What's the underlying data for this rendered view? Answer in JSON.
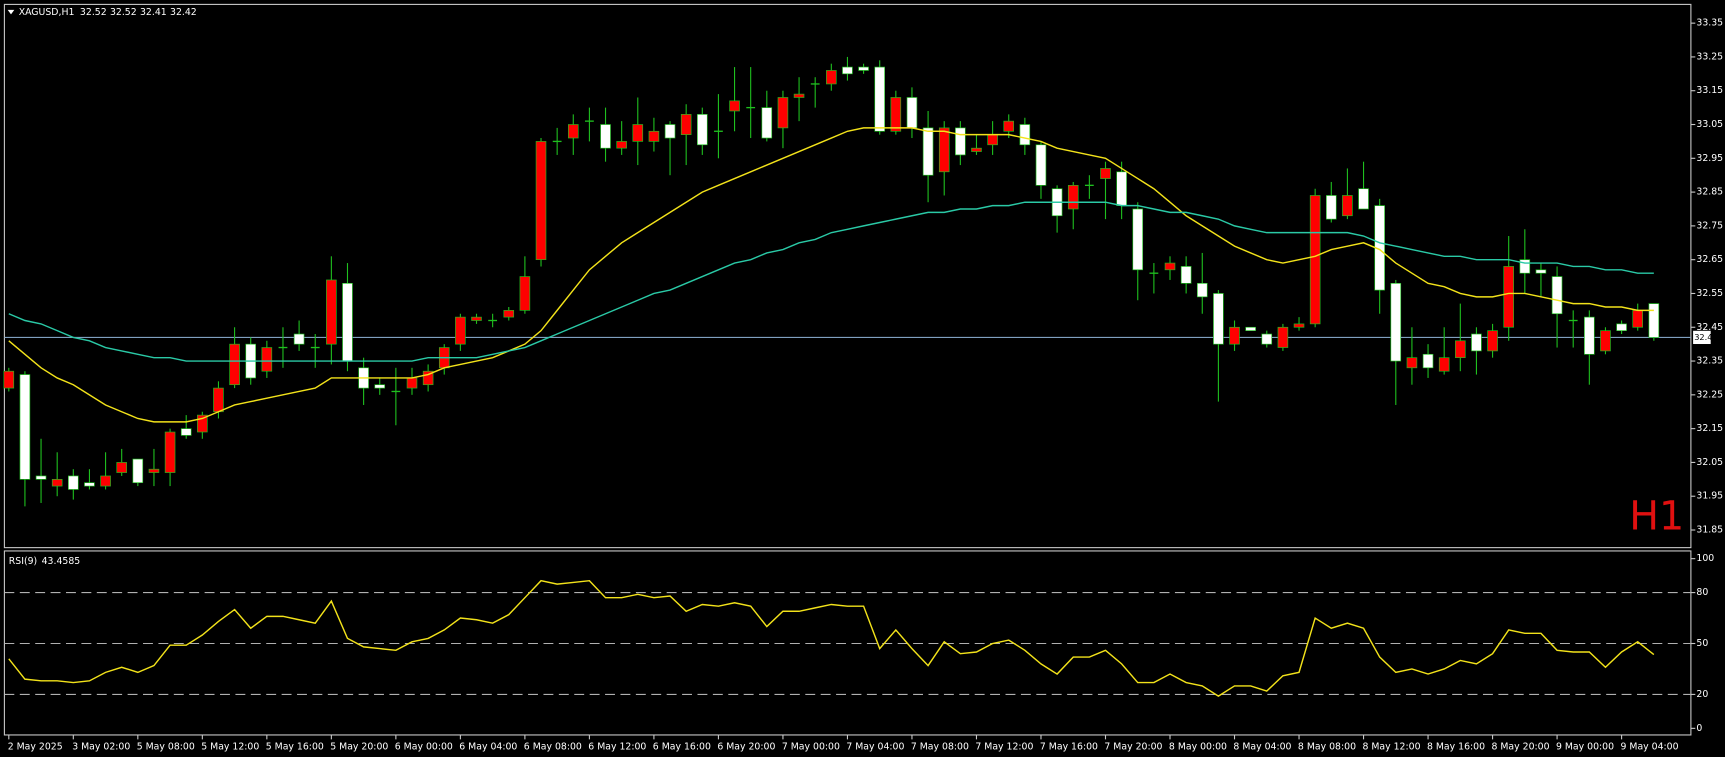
{
  "chart_data": [
    {
      "type": "candlestick",
      "title": "XAGUSD,H1",
      "categories": [
        "2 May 2025",
        null,
        null,
        null,
        "3 May 02:00",
        null,
        null,
        null,
        "5 May 08:00",
        null,
        null,
        null,
        "5 May 12:00",
        null,
        null,
        null,
        "5 May 16:00",
        null,
        null,
        null,
        "5 May 20:00",
        null,
        null,
        null,
        "6 May 00:00",
        null,
        null,
        null,
        "6 May 04:00",
        null,
        null,
        null,
        "6 May 08:00",
        null,
        null,
        null,
        "6 May 12:00",
        null,
        null,
        null,
        "6 May 16:00",
        null,
        null,
        null,
        "6 May 20:00",
        null,
        null,
        null,
        "7 May 00:00",
        null,
        null,
        null,
        "7 May 04:00",
        null,
        null,
        null,
        "7 May 08:00",
        null,
        null,
        null,
        "7 May 12:00",
        null,
        null,
        null,
        "7 May 16:00",
        null,
        null,
        null,
        "7 May 20:00",
        null,
        null,
        null,
        "8 May 00:00",
        null,
        null,
        null,
        "8 May 04:00",
        null,
        null,
        null,
        "8 May 08:00",
        null,
        null,
        null,
        "8 May 12:00",
        null,
        null,
        null,
        "8 May 16:00",
        null,
        null,
        null,
        "8 May 20:00",
        null,
        null,
        null,
        "9 May 00:00",
        null,
        null,
        null,
        "9 May 04:00",
        null,
        null
      ],
      "open": [
        32.27,
        32.31,
        32.01,
        31.98,
        32.01,
        31.99,
        31.98,
        32.02,
        32.06,
        32.02,
        32.02,
        32.15,
        32.14,
        32.2,
        32.28,
        32.4,
        32.32,
        32.39,
        32.43,
        32.39,
        32.4,
        32.58,
        32.33,
        32.28,
        32.26,
        32.27,
        32.28,
        32.33,
        32.4,
        32.47,
        32.47,
        32.48,
        32.5,
        32.65,
        33.0,
        33.01,
        33.06,
        33.05,
        32.98,
        33.0,
        33.0,
        33.05,
        33.02,
        33.08,
        33.03,
        33.09,
        33.1,
        33.1,
        33.04,
        33.13,
        33.17,
        33.17,
        33.22,
        33.22,
        33.22,
        33.03,
        33.13,
        33.04,
        32.91,
        33.04,
        32.97,
        32.99,
        33.03,
        33.05,
        32.99,
        32.86,
        32.8,
        32.87,
        32.89,
        32.91,
        32.8,
        32.61,
        32.62,
        32.63,
        32.58,
        32.55,
        32.4,
        32.45,
        32.43,
        32.39,
        32.45,
        32.46,
        32.84,
        32.78,
        32.86,
        32.81,
        32.58,
        32.33,
        32.37,
        32.32,
        32.36,
        32.43,
        32.38,
        32.45,
        32.65,
        32.62,
        32.6,
        32.47,
        32.48,
        32.38,
        32.46,
        32.45,
        32.52
      ],
      "high": [
        32.33,
        32.32,
        32.12,
        32.08,
        32.03,
        32.03,
        32.08,
        32.09,
        32.06,
        32.09,
        32.15,
        32.19,
        32.2,
        32.29,
        32.45,
        32.42,
        32.41,
        32.45,
        32.47,
        32.43,
        32.66,
        32.64,
        32.36,
        32.3,
        32.33,
        32.33,
        32.34,
        32.4,
        32.49,
        32.49,
        32.49,
        32.51,
        32.66,
        33.01,
        33.04,
        33.08,
        33.1,
        33.1,
        33.06,
        33.13,
        33.07,
        33.06,
        33.11,
        33.1,
        33.14,
        33.22,
        33.22,
        33.15,
        33.15,
        33.19,
        33.19,
        33.23,
        33.25,
        33.23,
        33.24,
        33.15,
        33.16,
        33.09,
        33.06,
        33.06,
        33.02,
        33.06,
        33.08,
        33.07,
        33.0,
        32.87,
        32.88,
        32.9,
        32.94,
        32.94,
        32.82,
        32.64,
        32.66,
        32.66,
        32.67,
        32.56,
        32.47,
        32.45,
        32.44,
        32.46,
        32.48,
        32.86,
        32.88,
        32.92,
        32.94,
        32.83,
        32.59,
        32.45,
        32.4,
        32.45,
        32.52,
        32.45,
        32.46,
        32.72,
        32.74,
        32.64,
        32.63,
        32.5,
        32.5,
        32.45,
        32.47,
        32.52,
        32.52
      ],
      "low": [
        32.26,
        31.92,
        31.93,
        31.95,
        31.94,
        31.97,
        31.97,
        32.01,
        31.98,
        31.98,
        31.98,
        32.12,
        32.12,
        32.18,
        32.27,
        32.28,
        32.3,
        32.33,
        32.38,
        32.33,
        32.34,
        32.32,
        32.22,
        32.25,
        32.16,
        32.25,
        32.26,
        32.31,
        32.38,
        32.46,
        32.45,
        32.47,
        32.49,
        32.63,
        32.96,
        32.96,
        33.0,
        32.94,
        32.96,
        32.93,
        32.97,
        32.9,
        32.93,
        32.96,
        32.95,
        33.03,
        33.01,
        33.0,
        32.98,
        33.06,
        33.1,
        33.15,
        33.18,
        33.2,
        33.02,
        33.02,
        33.01,
        32.82,
        32.84,
        32.93,
        32.96,
        32.96,
        33.01,
        32.96,
        32.83,
        32.73,
        32.74,
        32.83,
        32.77,
        32.77,
        32.53,
        32.55,
        32.59,
        32.55,
        32.49,
        32.23,
        32.38,
        32.44,
        32.39,
        32.38,
        32.44,
        32.45,
        32.76,
        32.77,
        32.8,
        32.49,
        32.22,
        32.28,
        32.3,
        32.31,
        32.32,
        32.31,
        32.36,
        32.41,
        32.55,
        32.54,
        32.39,
        32.39,
        32.28,
        32.37,
        32.43,
        32.44,
        32.41
      ],
      "close": [
        32.32,
        32.0,
        32.0,
        32.0,
        31.97,
        31.98,
        32.01,
        32.05,
        31.99,
        32.03,
        32.14,
        32.13,
        32.19,
        32.27,
        32.4,
        32.3,
        32.39,
        32.39,
        32.4,
        32.39,
        32.59,
        32.35,
        32.27,
        32.27,
        32.26,
        32.3,
        32.32,
        32.39,
        32.48,
        32.48,
        32.47,
        32.5,
        32.6,
        33.0,
        33.0,
        33.05,
        33.06,
        32.98,
        33.0,
        33.05,
        33.03,
        33.01,
        33.08,
        32.99,
        33.03,
        33.12,
        33.1,
        33.01,
        33.13,
        33.14,
        33.17,
        33.21,
        33.2,
        33.21,
        33.03,
        33.13,
        33.04,
        32.9,
        33.04,
        32.96,
        32.98,
        33.02,
        33.06,
        32.99,
        32.87,
        32.78,
        32.87,
        32.87,
        32.92,
        32.81,
        32.62,
        32.61,
        32.64,
        32.58,
        32.54,
        32.4,
        32.45,
        32.44,
        32.4,
        32.45,
        32.46,
        32.84,
        32.77,
        32.84,
        32.8,
        32.56,
        32.35,
        32.36,
        32.33,
        32.36,
        32.41,
        32.38,
        32.44,
        32.63,
        32.61,
        32.61,
        32.49,
        32.47,
        32.37,
        32.44,
        32.44,
        32.5,
        32.42
      ],
      "up_color": "#ff0000",
      "down_color": "#ffffff",
      "wick_color": "#1fc01f",
      "series": [
        {
          "color": "#f2e21a",
          "values": [
            32.41,
            32.37,
            32.33,
            32.3,
            32.28,
            32.25,
            32.22,
            32.2,
            32.18,
            32.17,
            32.17,
            32.17,
            32.18,
            32.2,
            32.22,
            32.23,
            32.24,
            32.25,
            32.26,
            32.27,
            32.3,
            32.3,
            32.3,
            32.3,
            32.3,
            32.3,
            32.31,
            32.33,
            32.34,
            32.35,
            32.36,
            32.38,
            32.4,
            32.44,
            32.5,
            32.56,
            32.62,
            32.66,
            32.7,
            32.73,
            32.76,
            32.79,
            32.82,
            32.85,
            32.87,
            32.89,
            32.91,
            32.93,
            32.95,
            32.97,
            32.99,
            33.01,
            33.03,
            33.04,
            33.04,
            33.04,
            33.04,
            33.03,
            33.03,
            33.02,
            33.02,
            33.02,
            33.02,
            33.01,
            33.0,
            32.98,
            32.97,
            32.96,
            32.95,
            32.92,
            32.89,
            32.86,
            32.82,
            32.78,
            32.75,
            32.72,
            32.69,
            32.67,
            32.65,
            32.64,
            32.65,
            32.66,
            32.68,
            32.69,
            32.7,
            32.68,
            32.64,
            32.61,
            32.58,
            32.57,
            32.55,
            32.54,
            32.54,
            32.55,
            32.55,
            32.54,
            32.53,
            32.52,
            32.52,
            32.51,
            32.51,
            32.5,
            32.5
          ]
        },
        {
          "color": "#2ac9a6",
          "values": [
            32.49,
            32.47,
            32.46,
            32.44,
            32.42,
            32.41,
            32.39,
            32.38,
            32.37,
            32.36,
            32.36,
            32.35,
            32.35,
            32.35,
            32.35,
            32.35,
            32.35,
            32.35,
            32.35,
            32.35,
            32.35,
            32.35,
            32.35,
            32.35,
            32.35,
            32.35,
            32.36,
            32.36,
            32.36,
            32.36,
            32.37,
            32.38,
            32.39,
            32.41,
            32.43,
            32.45,
            32.47,
            32.49,
            32.51,
            32.53,
            32.55,
            32.56,
            32.58,
            32.6,
            32.62,
            32.64,
            32.65,
            32.67,
            32.68,
            32.7,
            32.71,
            32.73,
            32.74,
            32.75,
            32.76,
            32.77,
            32.78,
            32.79,
            32.79,
            32.8,
            32.8,
            32.81,
            32.81,
            32.82,
            32.82,
            32.82,
            32.82,
            32.82,
            32.82,
            32.81,
            32.81,
            32.8,
            32.79,
            32.79,
            32.78,
            32.77,
            32.75,
            32.74,
            32.73,
            32.73,
            32.73,
            32.73,
            32.73,
            32.73,
            32.72,
            32.7,
            32.69,
            32.68,
            32.67,
            32.66,
            32.66,
            32.65,
            32.65,
            32.65,
            32.64,
            32.64,
            32.64,
            32.63,
            32.63,
            32.62,
            32.62,
            32.61,
            32.61
          ]
        }
      ],
      "ylim": [
        31.85,
        33.35
      ],
      "yticks": [
        33.35,
        33.25,
        33.15,
        33.05,
        32.95,
        32.85,
        32.75,
        32.65,
        32.55,
        32.45,
        32.35,
        32.25,
        32.15,
        32.05,
        31.95,
        31.85
      ],
      "price_line_color": "#7f9fbf",
      "timeframe_label": "H1",
      "timeframe_color": "#e01010"
    },
    {
      "type": "line",
      "title": "RSI(9)",
      "series": [
        {
          "color": "#f2e21a",
          "values": [
            41,
            29,
            28,
            28,
            27,
            28,
            33,
            36,
            33,
            37,
            49,
            49,
            55,
            63,
            70,
            59,
            66,
            66,
            64,
            62,
            75,
            53,
            48,
            47,
            46,
            51,
            53,
            58,
            65,
            64,
            62,
            67,
            77,
            87,
            85,
            86,
            87,
            77,
            77,
            79,
            77,
            78,
            69,
            73,
            72,
            74,
            72,
            60,
            69,
            69,
            71,
            73,
            72,
            72,
            47,
            58,
            47,
            37,
            51,
            44,
            45,
            50,
            52,
            46,
            38,
            32,
            42,
            42,
            46,
            38,
            27,
            27,
            32,
            27,
            25,
            19,
            25,
            25,
            22,
            31,
            33,
            65,
            59,
            62,
            59,
            42,
            33,
            35,
            32,
            35,
            40,
            38,
            44,
            58,
            56,
            56,
            46,
            45,
            45,
            36,
            45,
            51,
            43.4585
          ]
        }
      ],
      "ylim": [
        0,
        100
      ],
      "yticks": [
        0,
        20,
        50,
        80,
        100
      ],
      "levels": [
        20,
        50,
        80
      ]
    }
  ]
}
